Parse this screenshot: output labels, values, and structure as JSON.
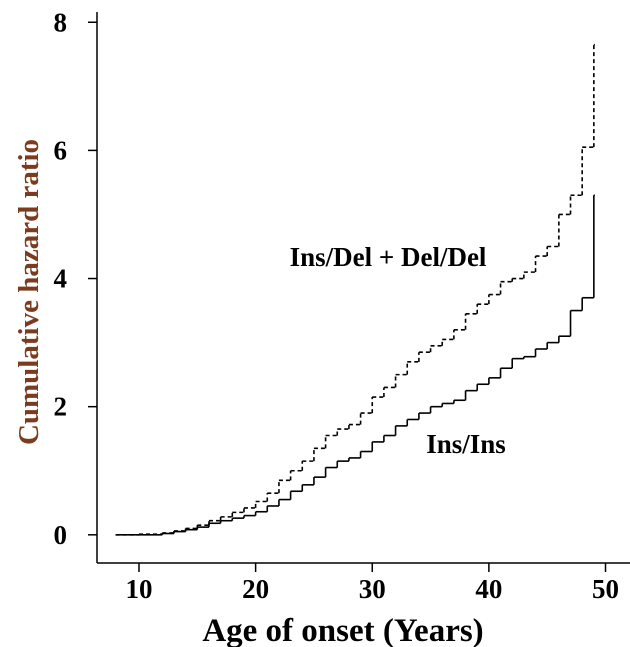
{
  "chart_data": {
    "type": "step",
    "x_label": "Age of onset (Years)",
    "y_label": "Cumulative hazard ratio",
    "annotations": [
      "Ins/Del + Del/Del",
      "Ins/Ins"
    ],
    "x": [
      8,
      10,
      12,
      13,
      14,
      15,
      16,
      17,
      18,
      19,
      20,
      21,
      22,
      23,
      24,
      25,
      26,
      27,
      28,
      29,
      30,
      31,
      32,
      33,
      34,
      35,
      36,
      37,
      38,
      39,
      40,
      41,
      42,
      43,
      44,
      45,
      46,
      47,
      48,
      49
    ],
    "series": [
      {
        "name": "Ins/Ins",
        "color": "#000000",
        "dash": false,
        "values": [
          0,
          0,
          0.02,
          0.05,
          0.08,
          0.12,
          0.18,
          0.22,
          0.26,
          0.3,
          0.36,
          0.45,
          0.55,
          0.68,
          0.78,
          0.9,
          1.05,
          1.15,
          1.2,
          1.3,
          1.45,
          1.55,
          1.7,
          1.8,
          1.9,
          2.0,
          2.05,
          2.1,
          2.25,
          2.35,
          2.45,
          2.6,
          2.75,
          2.78,
          2.9,
          3.0,
          3.1,
          3.5,
          3.7,
          5.3
        ]
      },
      {
        "name": "Ins/Del + Del/Del",
        "color": "#000000",
        "dash": true,
        "values": [
          0,
          0.01,
          0.03,
          0.06,
          0.1,
          0.15,
          0.22,
          0.28,
          0.35,
          0.42,
          0.52,
          0.65,
          0.85,
          1.0,
          1.15,
          1.35,
          1.55,
          1.65,
          1.72,
          1.9,
          2.15,
          2.3,
          2.5,
          2.7,
          2.85,
          2.95,
          3.05,
          3.2,
          3.45,
          3.6,
          3.75,
          3.95,
          4.0,
          4.1,
          4.35,
          4.5,
          5.0,
          5.3,
          6.05,
          7.65
        ]
      }
    ],
    "xlim": [
      6.4,
      52.1
    ],
    "xticks": [
      10,
      20,
      30,
      40,
      50
    ],
    "ylim": [
      -0.44,
      8.16
    ],
    "yticks": [
      0,
      2,
      4,
      6,
      8
    ]
  }
}
